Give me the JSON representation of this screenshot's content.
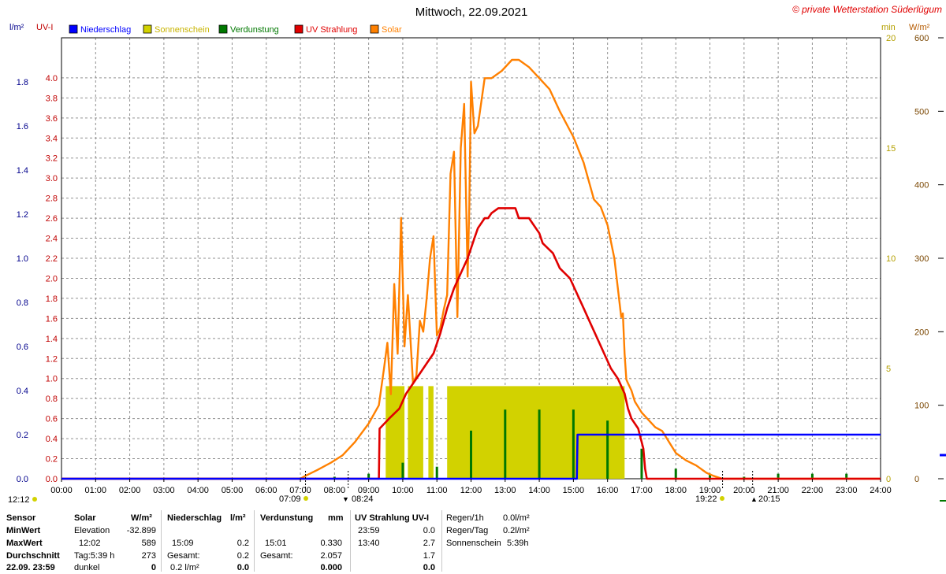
{
  "header": {
    "title": "Mittwoch, 22.09.2021",
    "copyright": "© private Wetterstation Süderlügum"
  },
  "axes": {
    "left_unit_precip": "l/m²",
    "left_unit_uv": "UV-I",
    "right_unit_min": "min",
    "right_unit_wm2": "W/m²"
  },
  "legend": [
    {
      "label": "Niederschlag",
      "color": "#0000ff"
    },
    {
      "label": "Sonnenschein",
      "color": "#d2d200"
    },
    {
      "label": "Verdunstung",
      "color": "#007800"
    },
    {
      "label": "UV Strahlung",
      "color": "#e00000"
    },
    {
      "label": "Solar",
      "color": "#ff8000"
    }
  ],
  "time_markers": {
    "start": "12:12",
    "sunrise": "07:09",
    "sunshine_start": "08:24",
    "sunset": "19:22",
    "sunshine_end": "20:15"
  },
  "chart_data": {
    "type": "line",
    "x_unit": "hour of day",
    "xlim": [
      0,
      24
    ],
    "x_tick_labels": [
      "00:00",
      "01:00",
      "02:00",
      "03:00",
      "04:00",
      "05:00",
      "06:00",
      "07:00",
      "08:00",
      "09:00",
      "10:00",
      "11:00",
      "12:00",
      "13:00",
      "14:00",
      "15:00",
      "16:00",
      "17:00",
      "18:00",
      "19:00",
      "20:00",
      "21:00",
      "22:00",
      "23:00",
      "24:00"
    ],
    "y_axes": {
      "precip": {
        "unit": "l/m²",
        "lim": [
          0,
          2.0
        ],
        "ticks": [
          "0.0",
          "0.2",
          "0.4",
          "0.6",
          "0.8",
          "1.0",
          "1.2",
          "1.4",
          "1.6",
          "1.8"
        ]
      },
      "uv": {
        "unit": "UV-I",
        "lim": [
          0,
          4.4
        ],
        "ticks": [
          "0.0",
          "0.2",
          "0.4",
          "0.6",
          "0.8",
          "1.0",
          "1.2",
          "1.4",
          "1.6",
          "1.8",
          "2.0",
          "2.2",
          "2.4",
          "2.6",
          "2.8",
          "3.0",
          "3.2",
          "3.4",
          "3.6",
          "3.8",
          "4.0"
        ]
      },
      "sunshine_min": {
        "unit": "min",
        "lim": [
          0,
          20
        ],
        "ticks": [
          "0",
          "5",
          "10",
          "15",
          "20"
        ]
      },
      "solar": {
        "unit": "W/m²",
        "lim": [
          0,
          600
        ],
        "ticks": [
          "0",
          "100",
          "200",
          "300",
          "400",
          "500",
          "600"
        ]
      }
    },
    "grid": true,
    "legend_position": "top",
    "series": [
      {
        "name": "Solar",
        "color": "#ff8000",
        "axis": "solar",
        "x": [
          0,
          7.0,
          7.15,
          7.5,
          7.9,
          8.24,
          8.6,
          9.0,
          9.3,
          9.45,
          9.55,
          9.65,
          9.75,
          9.85,
          9.95,
          10.05,
          10.15,
          10.3,
          10.4,
          10.5,
          10.6,
          10.7,
          10.8,
          10.9,
          11.0,
          11.1,
          11.2,
          11.3,
          11.4,
          11.5,
          11.6,
          11.7,
          11.8,
          11.9,
          11.95,
          12.0,
          12.1,
          12.2,
          12.4,
          12.6,
          12.9,
          13.2,
          13.4,
          13.7,
          14.0,
          14.3,
          14.6,
          15.0,
          15.3,
          15.6,
          15.8,
          16.0,
          16.2,
          16.4,
          16.45,
          16.5,
          16.55,
          16.6,
          16.7,
          16.8,
          17.0,
          17.2,
          17.4,
          17.6,
          17.8,
          18.0,
          18.3,
          18.6,
          18.9,
          19.1,
          19.3,
          19.37,
          24
        ],
        "y": [
          0,
          0,
          4,
          12,
          22,
          32,
          50,
          75,
          100,
          150,
          185,
          115,
          265,
          170,
          355,
          180,
          250,
          130,
          140,
          215,
          200,
          245,
          300,
          330,
          195,
          205,
          230,
          250,
          415,
          445,
          220,
          450,
          510,
          275,
          370,
          540,
          470,
          480,
          545,
          545,
          555,
          570,
          570,
          560,
          545,
          530,
          500,
          465,
          430,
          380,
          370,
          345,
          300,
          220,
          225,
          170,
          135,
          130,
          120,
          105,
          90,
          80,
          70,
          65,
          50,
          35,
          25,
          18,
          8,
          4,
          1,
          0,
          0
        ]
      },
      {
        "name": "UV Strahlung",
        "color": "#e00000",
        "axis": "uv",
        "x": [
          0,
          9.3,
          9.32,
          9.6,
          9.9,
          10.1,
          10.3,
          10.5,
          10.7,
          10.9,
          11.1,
          11.3,
          11.5,
          11.7,
          11.9,
          12.0,
          12.1,
          12.2,
          12.4,
          12.5,
          12.6,
          12.8,
          13.0,
          13.3,
          13.4,
          13.7,
          13.8,
          14.0,
          14.1,
          14.4,
          14.6,
          14.9,
          15.1,
          15.3,
          15.5,
          15.7,
          15.9,
          16.1,
          16.3,
          16.5,
          16.6,
          16.7,
          16.8,
          16.9,
          17.05,
          17.1,
          17.15,
          24
        ],
        "y": [
          0,
          0,
          0.5,
          0.6,
          0.7,
          0.85,
          0.95,
          1.05,
          1.15,
          1.25,
          1.45,
          1.7,
          1.9,
          2.05,
          2.2,
          2.3,
          2.4,
          2.5,
          2.6,
          2.6,
          2.65,
          2.7,
          2.7,
          2.7,
          2.6,
          2.6,
          2.55,
          2.45,
          2.35,
          2.25,
          2.1,
          2.0,
          1.85,
          1.7,
          1.55,
          1.4,
          1.25,
          1.1,
          1.0,
          0.85,
          0.7,
          0.6,
          0.55,
          0.5,
          0.3,
          0.1,
          0,
          0
        ]
      },
      {
        "name": "Niederschlag",
        "color": "#0000ff",
        "axis": "precip",
        "x": [
          0,
          15.1,
          15.12,
          24
        ],
        "y": [
          0,
          0,
          0.2,
          0.2
        ]
      },
      {
        "name": "Sonnenschein",
        "color": "#d2d200",
        "axis": "sunshine_min",
        "type": "bar",
        "x_start": [
          9.5,
          10.15,
          10.75,
          11.3
        ],
        "x_end": [
          10.05,
          10.6,
          10.9,
          16.5
        ],
        "y": [
          4.2,
          4.2,
          4.2,
          4.2
        ]
      },
      {
        "name": "Verdunstung",
        "color": "#007800",
        "axis": "uv",
        "type": "impulse",
        "x": [
          8.0,
          9.0,
          10.0,
          11.0,
          12.0,
          13.0,
          14.0,
          15.0,
          16.0,
          17.0,
          18.0,
          19.0,
          20.0,
          21.0,
          22.0,
          23.0
        ],
        "y": [
          0.02,
          0.05,
          0.16,
          0.12,
          0.48,
          0.69,
          0.69,
          0.69,
          0.58,
          0.3,
          0.1,
          0.05,
          0.02,
          0.05,
          0.05,
          0.05
        ]
      }
    ]
  },
  "stats": {
    "header_row": {
      "sensor": "Sensor",
      "solar": "Solar",
      "solar_unit": "W/m²",
      "niederschlag": "Niederschlag",
      "niederschlag_unit": "l/m²",
      "verdunstung": "Verdunstung",
      "verdunstung_unit": "mm",
      "uv": "UV Strahlung UV-I"
    },
    "row_labels": [
      "MinWert",
      "MaxWert",
      "Durchschnitt",
      "22.09. 23:59"
    ],
    "solar": [
      {
        "time": "Elevation",
        "value": "-32.899"
      },
      {
        "time": "12:02",
        "value": "589"
      },
      {
        "time": "Tag:5:39 h",
        "value": "273"
      },
      {
        "time": "dunkel",
        "value": "0"
      }
    ],
    "niederschlag": [
      {
        "time": "",
        "value": ""
      },
      {
        "time": "15:09",
        "value": "0.2"
      },
      {
        "time": "Gesamt:",
        "value": "0.2"
      },
      {
        "time": "0.2 l/m²",
        "value": "0.0"
      }
    ],
    "verdunstung": [
      {
        "time": "",
        "value": ""
      },
      {
        "time": "15:01",
        "value": "0.330"
      },
      {
        "time": "Gesamt:",
        "value": "2.057"
      },
      {
        "time": "",
        "value": "0.000"
      }
    ],
    "uv": [
      {
        "time": "23:59",
        "value": "0.0"
      },
      {
        "time": "13:40",
        "value": "2.7"
      },
      {
        "time": "",
        "value": "1.7"
      },
      {
        "time": "",
        "value": "0.0"
      }
    ],
    "regen": [
      {
        "label": "Regen/1h",
        "value": "0.0l/m²"
      },
      {
        "label": "Regen/Tag",
        "value": "0.2l/m²"
      },
      {
        "label": "Sonnenschein",
        "value": "5:39h"
      }
    ]
  }
}
